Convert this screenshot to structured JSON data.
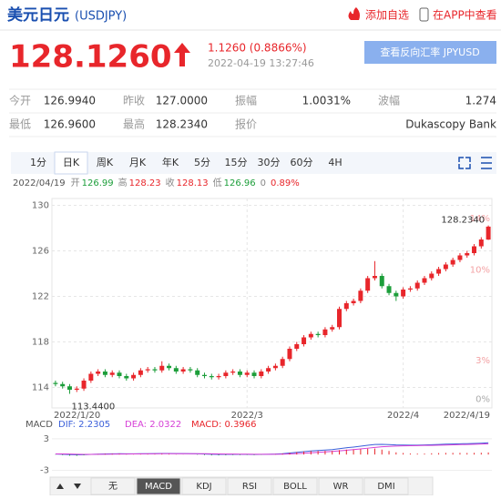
{
  "header": {
    "title": "美元日元",
    "code": "(USDJPY)",
    "actions": [
      "添加自选",
      "在APP中查看"
    ]
  },
  "quote": {
    "price": "128.1260",
    "change": "1.1260 (0.8866%)",
    "time": "2022-04-19 13:27:46",
    "reverse_button": "查看反向汇率 JPYUSD"
  },
  "stats": [
    [
      {
        "label": "今开",
        "value": "126.9940"
      },
      {
        "label": "昨收",
        "value": "127.0000"
      },
      {
        "label": "振幅",
        "value": "1.0031%"
      },
      {
        "label": "波幅",
        "value": "1.274"
      }
    ],
    [
      {
        "label": "最低",
        "value": "126.9600"
      },
      {
        "label": "最高",
        "value": "128.2340"
      },
      {
        "label": "报价",
        "value": "Dukascopy Bank"
      }
    ]
  ],
  "period_tabs": {
    "items": [
      "1分",
      "日K",
      "周K",
      "月K",
      "年K",
      "5分",
      "15分",
      "30分",
      "60分",
      "4H"
    ],
    "active": 1
  },
  "ohlc_line": {
    "date": "2022/04/19",
    "items": [
      {
        "label": "开",
        "value": "126.99"
      },
      {
        "label": "高",
        "value": "128.23"
      },
      {
        "label": "收",
        "value": "128.13"
      },
      {
        "label": "低",
        "value": "126.96"
      }
    ],
    "extra": [
      "0",
      "0.89%"
    ]
  },
  "chart_data": [
    {
      "type": "candlestick",
      "categories": [
        "2022/1/20",
        null,
        null,
        null,
        null,
        null,
        null,
        null,
        null,
        null,
        null,
        null,
        null,
        null,
        null,
        null,
        null,
        null,
        null,
        null,
        null,
        null,
        null,
        null,
        null,
        null,
        null,
        "2022/3",
        null,
        null,
        null,
        null,
        null,
        null,
        null,
        null,
        null,
        null,
        null,
        null,
        null,
        null,
        null,
        null,
        null,
        null,
        null,
        null,
        null,
        "2022/4",
        null,
        null,
        null,
        null,
        null,
        null,
        null,
        null,
        null,
        null,
        null,
        "2022/4/19"
      ],
      "open": [
        114.4,
        114.3,
        114.1,
        113.8,
        113.9,
        114.6,
        115.2,
        115.4,
        115.1,
        115.3,
        115.0,
        114.8,
        115.1,
        115.5,
        115.6,
        115.5,
        115.9,
        115.7,
        115.4,
        115.6,
        115.5,
        115.1,
        115.0,
        114.9,
        115.0,
        115.3,
        115.4,
        115.1,
        115.3,
        115.0,
        115.4,
        115.7,
        115.9,
        116.5,
        117.4,
        117.8,
        118.4,
        118.7,
        118.6,
        119.1,
        119.3,
        120.9,
        121.4,
        121.6,
        122.5,
        123.6,
        123.8,
        122.9,
        122.3,
        122.0,
        122.6,
        122.7,
        123.2,
        123.6,
        124.0,
        124.4,
        124.8,
        125.2,
        125.6,
        125.8,
        126.4,
        126.99
      ],
      "high": [
        114.6,
        114.5,
        114.3,
        114.1,
        114.8,
        115.4,
        115.6,
        115.6,
        115.5,
        115.5,
        115.2,
        115.3,
        115.7,
        115.8,
        115.8,
        116.3,
        116.1,
        115.9,
        115.8,
        115.8,
        115.7,
        115.3,
        115.2,
        115.2,
        115.5,
        115.6,
        115.6,
        115.5,
        115.5,
        115.6,
        115.9,
        116.1,
        116.7,
        117.6,
        118.0,
        118.6,
        118.9,
        118.9,
        119.3,
        119.5,
        121.1,
        121.6,
        121.8,
        122.7,
        123.8,
        125.1,
        124.0,
        123.1,
        122.5,
        122.8,
        122.9,
        123.4,
        123.8,
        124.2,
        124.6,
        125.0,
        125.4,
        125.8,
        126.0,
        126.6,
        127.2,
        128.23
      ],
      "low": [
        114.1,
        113.9,
        113.44,
        113.6,
        113.7,
        114.4,
        115.0,
        114.9,
        114.9,
        114.8,
        114.6,
        114.6,
        114.9,
        115.3,
        115.3,
        115.3,
        115.5,
        115.2,
        115.2,
        115.3,
        114.9,
        114.8,
        114.7,
        114.7,
        114.8,
        115.1,
        114.9,
        114.9,
        114.8,
        114.8,
        115.2,
        115.5,
        115.7,
        116.3,
        117.2,
        117.6,
        118.2,
        118.4,
        118.4,
        118.9,
        119.1,
        120.7,
        121.2,
        121.4,
        122.3,
        123.4,
        122.7,
        122.1,
        121.6,
        121.8,
        122.4,
        122.5,
        123.0,
        123.4,
        123.8,
        124.2,
        124.6,
        125.0,
        125.4,
        125.6,
        126.2,
        126.96
      ],
      "close": [
        114.3,
        114.1,
        113.8,
        113.9,
        114.6,
        115.2,
        115.4,
        115.1,
        115.3,
        115.0,
        114.8,
        115.1,
        115.5,
        115.6,
        115.5,
        115.9,
        115.7,
        115.4,
        115.6,
        115.5,
        115.1,
        115.0,
        114.9,
        115.0,
        115.3,
        115.4,
        115.1,
        115.3,
        115.0,
        115.4,
        115.7,
        115.9,
        116.5,
        117.4,
        117.8,
        118.4,
        118.7,
        118.6,
        119.1,
        119.3,
        120.9,
        121.4,
        121.6,
        122.5,
        123.6,
        123.8,
        122.9,
        122.3,
        122.0,
        122.6,
        122.7,
        123.2,
        123.6,
        124.0,
        124.4,
        124.8,
        125.2,
        125.6,
        125.8,
        126.4,
        127.0,
        128.13
      ],
      "up_color": "#e8262b",
      "down_color": "#1c9e3a",
      "ylim": [
        112.2,
        130.6
      ],
      "yticks": [
        114,
        118,
        122,
        126,
        130
      ],
      "y2lim": [
        -1.09,
        15.13
      ],
      "y2ticks": [
        {
          "value": 0,
          "label": "0%"
        },
        {
          "value": 3,
          "label": "3%"
        },
        {
          "value": 10,
          "label": "10%"
        },
        {
          "value": 14,
          "label": "14%"
        }
      ],
      "annotations": {
        "max": "128.2340",
        "min": "113.4400"
      },
      "grid": true
    },
    {
      "type": "macd",
      "title": "MACD",
      "series": [
        {
          "name": "DIF: 2.2305",
          "color": "#3b5fd9",
          "values": [
            0.1,
            0.05,
            -0.02,
            -0.06,
            -0.03,
            0.03,
            0.08,
            0.12,
            0.14,
            0.15,
            0.13,
            0.13,
            0.15,
            0.17,
            0.18,
            0.21,
            0.21,
            0.19,
            0.18,
            0.17,
            0.13,
            0.09,
            0.05,
            0.03,
            0.03,
            0.04,
            0.03,
            0.03,
            0.01,
            0.02,
            0.05,
            0.09,
            0.16,
            0.28,
            0.41,
            0.55,
            0.68,
            0.76,
            0.86,
            0.94,
            1.12,
            1.29,
            1.42,
            1.58,
            1.77,
            1.92,
            1.94,
            1.89,
            1.82,
            1.8,
            1.78,
            1.79,
            1.82,
            1.87,
            1.92,
            1.97,
            2.01,
            2.05,
            2.07,
            2.11,
            2.16,
            2.2305
          ]
        },
        {
          "name": "DEA: 2.0322",
          "color": "#d63fd6",
          "values": [
            0.12,
            0.11,
            0.09,
            0.06,
            0.04,
            0.04,
            0.05,
            0.06,
            0.08,
            0.09,
            0.1,
            0.11,
            0.12,
            0.13,
            0.14,
            0.15,
            0.16,
            0.17,
            0.17,
            0.17,
            0.16,
            0.15,
            0.13,
            0.11,
            0.1,
            0.09,
            0.08,
            0.07,
            0.06,
            0.05,
            0.05,
            0.06,
            0.08,
            0.12,
            0.18,
            0.25,
            0.34,
            0.42,
            0.51,
            0.6,
            0.7,
            0.82,
            0.94,
            1.07,
            1.21,
            1.35,
            1.47,
            1.55,
            1.61,
            1.65,
            1.68,
            1.7,
            1.73,
            1.75,
            1.78,
            1.81,
            1.85,
            1.89,
            1.92,
            1.95,
            1.99,
            2.0322
          ]
        },
        {
          "name": "MACD: 0.3966",
          "color": "#e8262b",
          "down_color": "#1c9e3a",
          "bars": true,
          "values": [
            -0.04,
            -0.12,
            -0.22,
            -0.24,
            -0.14,
            -0.02,
            0.06,
            0.12,
            0.12,
            0.12,
            0.06,
            0.04,
            0.06,
            0.08,
            0.08,
            0.12,
            0.1,
            0.04,
            0.02,
            0,
            -0.06,
            -0.12,
            -0.16,
            -0.16,
            -0.14,
            -0.1,
            -0.1,
            -0.08,
            -0.1,
            -0.06,
            0,
            0.06,
            0.16,
            0.32,
            0.46,
            0.6,
            0.68,
            0.68,
            0.7,
            0.68,
            0.84,
            0.94,
            0.96,
            1.02,
            1.12,
            1.14,
            0.94,
            0.68,
            0.42,
            0.3,
            0.2,
            0.18,
            0.18,
            0.24,
            0.28,
            0.32,
            0.32,
            0.32,
            0.3,
            0.32,
            0.34,
            0.3966
          ]
        }
      ],
      "ylim": [
        -3.95,
        5.05
      ],
      "yticks": [
        -3,
        3
      ]
    }
  ],
  "indicator_tabs": {
    "items": [
      "无",
      "MACD",
      "KDJ",
      "RSI",
      "BOLL",
      "WR",
      "DMI"
    ],
    "active": 1
  }
}
